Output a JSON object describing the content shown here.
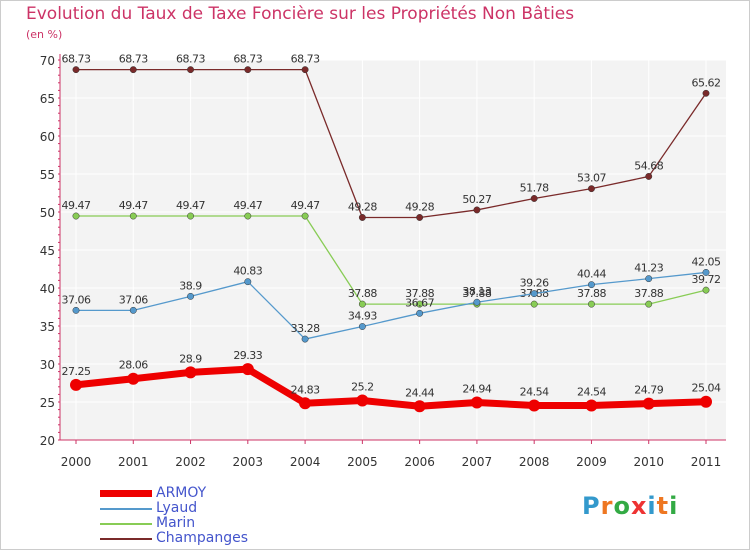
{
  "chart_data": {
    "type": "line",
    "title": "Evolution du Taux de Taxe Foncière sur les Propriétés Non Bâties",
    "ylabel": "(en %)",
    "xlabel": "",
    "ylim": [
      20,
      70
    ],
    "yticks": [
      "20",
      "25",
      "30",
      "35",
      "40",
      "45",
      "50",
      "55",
      "60",
      "65",
      "70"
    ],
    "categories": [
      "2000",
      "2001",
      "2002",
      "2003",
      "2004",
      "2005",
      "2006",
      "2007",
      "2008",
      "2009",
      "2010",
      "2011"
    ],
    "series": [
      {
        "name": "Champanges",
        "color": "#7a2a2a",
        "values": [
          68.73,
          68.73,
          68.73,
          68.73,
          68.73,
          49.28,
          49.28,
          50.27,
          51.78,
          53.07,
          54.68,
          65.62
        ],
        "labels": [
          "68.73",
          "68.73",
          "68.73",
          "68.73",
          "68.73",
          "49.28",
          "49.28",
          "50.27",
          "51.78",
          "53.07",
          "54.68",
          "65.62"
        ]
      },
      {
        "name": "Marin",
        "color": "#88cc55",
        "values": [
          49.47,
          49.47,
          49.47,
          49.47,
          49.47,
          37.88,
          37.88,
          37.88,
          37.88,
          37.88,
          37.88,
          39.72
        ],
        "labels": [
          "49.47",
          "49.47",
          "49.47",
          "49.47",
          "49.47",
          "37.88",
          "37.88",
          "37.88",
          "37.88",
          "37.88",
          "37.88",
          "39.72"
        ]
      },
      {
        "name": "Lyaud",
        "color": "#5599cc",
        "values": [
          37.06,
          37.06,
          38.9,
          40.83,
          33.28,
          34.93,
          36.67,
          38.13,
          39.26,
          40.44,
          41.23,
          42.05
        ],
        "labels": [
          "37.06",
          "37.06",
          "38.9",
          "40.83",
          "33.28",
          "34.93",
          "36.67",
          "38.13",
          "39.26",
          "40.44",
          "41.23",
          "42.05"
        ]
      },
      {
        "name": "ARMOY",
        "color": "#ee0000",
        "values": [
          27.25,
          28.06,
          28.9,
          29.33,
          24.83,
          25.2,
          24.44,
          24.94,
          24.54,
          24.54,
          24.79,
          25.04
        ],
        "labels": [
          "27.25",
          "28.06",
          "28.9",
          "29.33",
          "24.83",
          "25.2",
          "24.44",
          "24.94",
          "24.54",
          "24.54",
          "24.79",
          "25.04"
        ]
      }
    ],
    "legend": [
      "ARMOY",
      "Lyaud",
      "Marin",
      "Champanges"
    ],
    "grid": true
  },
  "logo": {
    "letters": [
      "P",
      "r",
      "o",
      "x",
      "i",
      "t",
      "i"
    ],
    "colors": [
      "#3399cc",
      "#ee7722",
      "#33aa44",
      "#ee3333",
      "#3399cc",
      "#ee7722",
      "#33aa44"
    ]
  }
}
